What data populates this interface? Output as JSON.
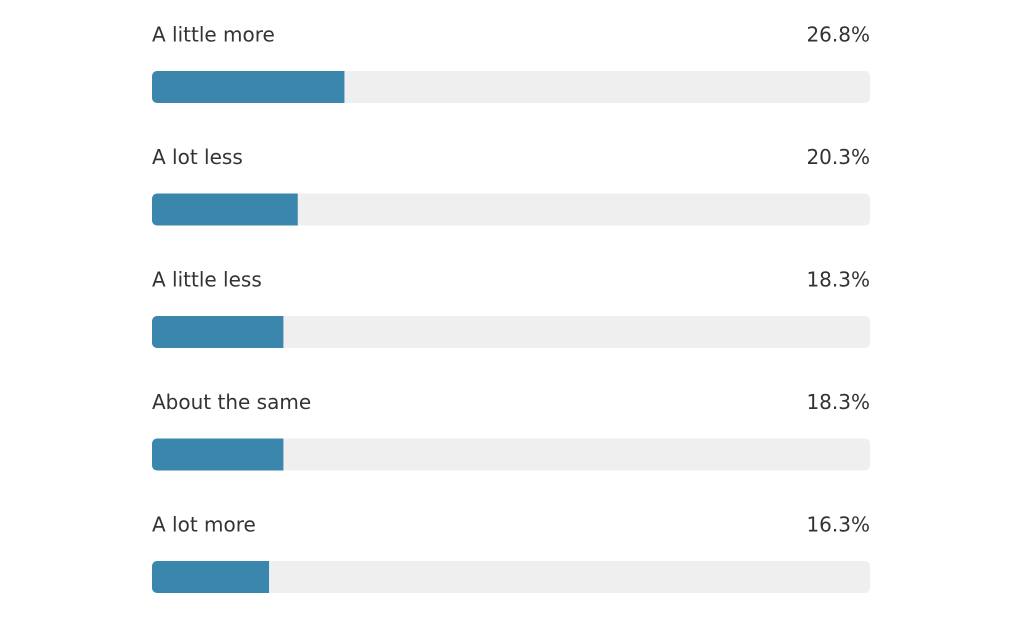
{
  "chart_data": {
    "type": "bar",
    "orientation": "horizontal",
    "categories": [
      "A little more",
      "A lot less",
      "A little less",
      "About the same",
      "A lot more"
    ],
    "values": [
      26.8,
      20.3,
      18.3,
      18.3,
      16.3
    ],
    "value_labels": [
      "26.8%",
      "20.3%",
      "18.3%",
      "18.3%",
      "16.3%"
    ],
    "color": "#3a86ad",
    "track_color": "#efefef",
    "xlim": [
      0,
      100
    ]
  }
}
